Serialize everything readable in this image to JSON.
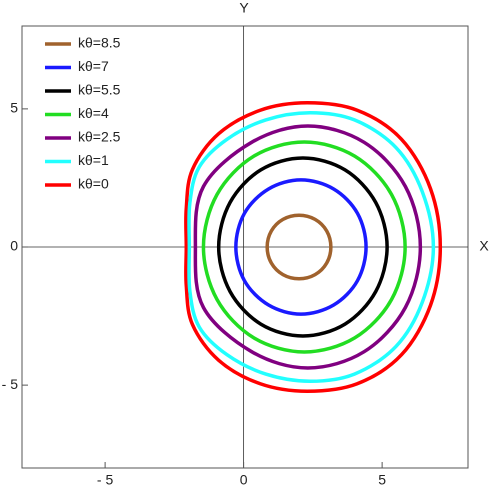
{
  "chart_data": {
    "type": "line",
    "closed": true,
    "xlabel": "X",
    "ylabel": "Y",
    "xlim": [
      -8,
      8.1
    ],
    "ylim": [
      -8,
      8
    ],
    "xticks": [
      {
        "value": -5,
        "label": "- 5"
      },
      0,
      5
    ],
    "yticks": [
      {
        "value": -5,
        "label": "- 5"
      },
      0,
      5
    ],
    "legend": "upper left",
    "series": [
      {
        "name": "kθ=8.5",
        "color": "#a0622d",
        "x": [
          3.15,
          3.0,
          2.58,
          2,
          1.42,
          1.0,
          0.85,
          1.0,
          1.42,
          2,
          2.58,
          3.0
        ],
        "y": [
          0,
          0.58,
          1.0,
          1.15,
          1.0,
          0.58,
          0,
          -0.58,
          -1.0,
          -1.15,
          -1.0,
          -0.58
        ]
      },
      {
        "name": "kθ=7",
        "color": "#1a1aff",
        "x": [
          4.42,
          4.11,
          3.25,
          2.07,
          0.9,
          0.03,
          -0.28,
          0.03,
          0.9,
          2.07,
          3.25,
          4.11
        ],
        "y": [
          0,
          1.22,
          2.1,
          2.43,
          2.1,
          1.22,
          0,
          -1.22,
          -2.1,
          -2.43,
          -2.1,
          -1.22
        ]
      },
      {
        "name": "kθ=5.5",
        "color": "#000000",
        "x": [
          5.18,
          4.77,
          3.66,
          2.14,
          0.62,
          -0.49,
          -0.9,
          -0.49,
          0.62,
          2.14,
          3.66,
          4.77
        ],
        "y": [
          0,
          1.61,
          2.79,
          3.22,
          2.79,
          1.61,
          0,
          -1.61,
          -2.79,
          -3.22,
          -2.79,
          -1.61
        ]
      },
      {
        "name": "kθ=4",
        "color": "#22dd22",
        "x": [
          5.83,
          5.34,
          4.01,
          2.19,
          0.37,
          -0.96,
          -1.45,
          -0.96,
          0.37,
          2.19,
          4.01,
          5.34
        ],
        "y": [
          0,
          1.9,
          3.29,
          3.8,
          3.29,
          1.9,
          0,
          -1.9,
          -3.29,
          -3.8,
          -3.29,
          -1.9
        ]
      },
      {
        "name": "kθ=2.5",
        "color": "#800080",
        "x": [
          6.38,
          5.84,
          4.35,
          2.32,
          0.29,
          -1.45,
          -1.74,
          -1.45,
          0.29,
          2.32,
          4.35,
          5.84
        ],
        "y": [
          0,
          2.19,
          3.79,
          4.38,
          3.79,
          2.19,
          0,
          -2.19,
          -3.79,
          -4.38,
          -3.79,
          -2.19
        ]
      },
      {
        "name": "kθ=1",
        "color": "#22ffff",
        "x": [
          6.85,
          6.45,
          5.5,
          4.0,
          2.4,
          0.8,
          -0.6,
          -1.6,
          -1.94,
          -1.96,
          -1.94,
          -1.6,
          -0.6,
          0.8,
          2.4,
          4.0,
          5.5,
          6.45
        ],
        "y": [
          0,
          2.0,
          3.6,
          4.6,
          4.86,
          4.6,
          3.9,
          2.9,
          1.6,
          0,
          -1.6,
          -2.9,
          -3.9,
          -4.6,
          -4.86,
          -4.6,
          -3.6,
          -2.0
        ]
      },
      {
        "name": "kθ=0",
        "color": "#ff0000",
        "x": [
          7.1,
          6.75,
          5.7,
          4.1,
          2.3,
          0.6,
          -0.9,
          -1.85,
          -2.07,
          -2.07,
          -2.07,
          -1.85,
          -0.9,
          0.6,
          2.3,
          4.1,
          5.7,
          6.75
        ],
        "y": [
          0,
          2.1,
          3.9,
          4.95,
          5.22,
          4.95,
          4.1,
          2.8,
          1.4,
          0,
          -1.4,
          -2.8,
          -4.1,
          -4.95,
          -5.22,
          -4.95,
          -3.9,
          -2.1
        ]
      }
    ]
  }
}
